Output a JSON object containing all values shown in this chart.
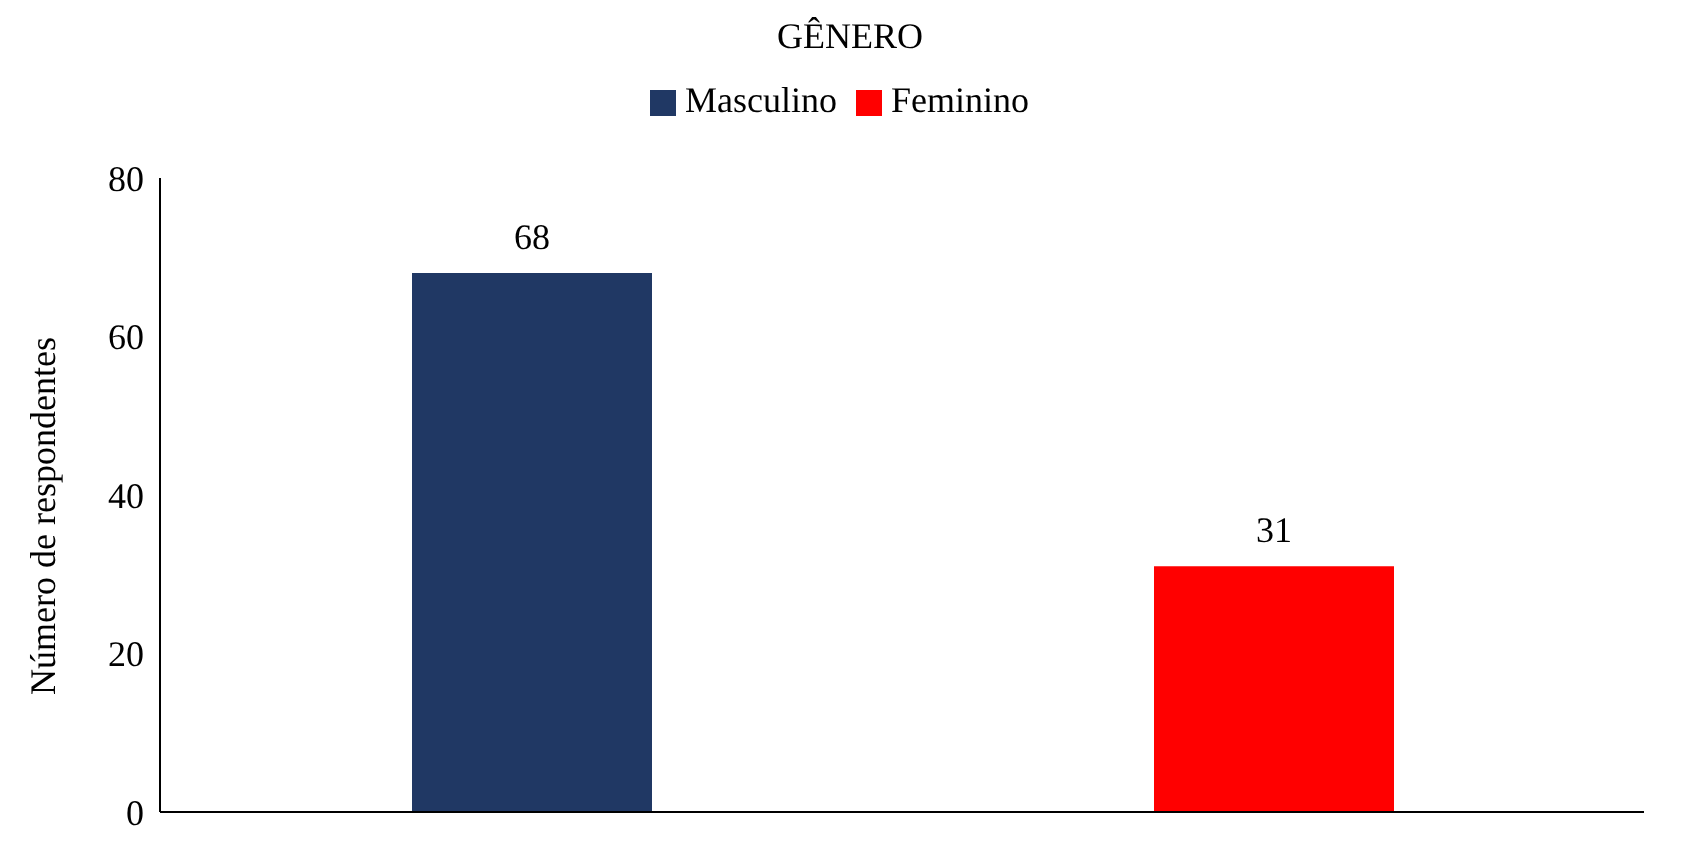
{
  "chart_data": {
    "type": "bar",
    "title": "GÊNERO",
    "ylabel": "Número de respondentes",
    "categories": [
      null,
      null
    ],
    "series": [
      {
        "name": "Masculino",
        "color": "#203864",
        "values": [
          68,
          null
        ]
      },
      {
        "name": "Feminino",
        "color": "#ff0000",
        "values": [
          null,
          31
        ]
      }
    ],
    "ylim": [
      0,
      80
    ],
    "yticks": [
      0,
      20,
      40,
      60,
      80
    ],
    "grid": false,
    "legend": "top",
    "data_labels": true
  }
}
